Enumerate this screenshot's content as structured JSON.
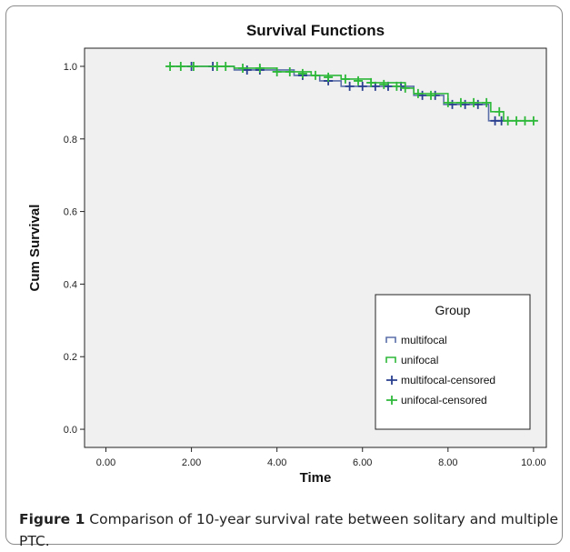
{
  "chart_data": {
    "type": "line",
    "title": "Survival Functions",
    "xlabel": "Time",
    "ylabel": "Cum Survival",
    "xlim": [
      -0.5,
      10.3
    ],
    "ylim": [
      -0.05,
      1.05
    ],
    "x_ticks": [
      "0.00",
      "2.00",
      "4.00",
      "6.00",
      "8.00",
      "10.00"
    ],
    "y_ticks": [
      "0.0",
      "0.2",
      "0.4",
      "0.6",
      "0.8",
      "1.0"
    ],
    "x_tick_values": [
      0,
      2,
      4,
      6,
      8,
      10
    ],
    "y_tick_values": [
      0,
      0.2,
      0.4,
      0.6,
      0.8,
      1.0
    ],
    "grid": false,
    "legend": {
      "title": "Group",
      "placement": "bottom-right",
      "entries": [
        "multifocal",
        "unifocal",
        "multifocal-censored",
        "unifocal-censored"
      ]
    },
    "series": [
      {
        "name": "multifocal",
        "color": "#5a6ea8",
        "steps": [
          [
            1.5,
            1.0
          ],
          [
            3.0,
            0.99
          ],
          [
            4.4,
            0.975
          ],
          [
            5.0,
            0.96
          ],
          [
            5.5,
            0.945
          ],
          [
            7.2,
            0.92
          ],
          [
            7.9,
            0.895
          ],
          [
            8.95,
            0.85
          ],
          [
            9.3,
            0.85
          ]
        ],
        "censored": [
          [
            2.0,
            1.0
          ],
          [
            2.5,
            1.0
          ],
          [
            3.3,
            0.99
          ],
          [
            3.6,
            0.99
          ],
          [
            4.6,
            0.975
          ],
          [
            5.2,
            0.96
          ],
          [
            5.7,
            0.945
          ],
          [
            6.0,
            0.945
          ],
          [
            6.3,
            0.945
          ],
          [
            6.6,
            0.945
          ],
          [
            6.9,
            0.945
          ],
          [
            7.4,
            0.92
          ],
          [
            7.7,
            0.92
          ],
          [
            8.1,
            0.895
          ],
          [
            8.4,
            0.895
          ],
          [
            8.7,
            0.895
          ],
          [
            9.1,
            0.85
          ],
          [
            9.25,
            0.85
          ]
        ]
      },
      {
        "name": "unifocal",
        "color": "#2eb83a",
        "steps": [
          [
            1.5,
            1.0
          ],
          [
            3.0,
            0.995
          ],
          [
            4.0,
            0.985
          ],
          [
            4.8,
            0.975
          ],
          [
            5.5,
            0.965
          ],
          [
            6.2,
            0.955
          ],
          [
            7.0,
            0.94
          ],
          [
            7.2,
            0.925
          ],
          [
            8.0,
            0.9
          ],
          [
            9.0,
            0.875
          ],
          [
            9.3,
            0.85
          ],
          [
            10.0,
            0.85
          ]
        ],
        "censored": [
          [
            1.5,
            1.0
          ],
          [
            1.75,
            1.0
          ],
          [
            2.05,
            1.0
          ],
          [
            2.6,
            1.0
          ],
          [
            2.8,
            1.0
          ],
          [
            3.2,
            0.995
          ],
          [
            3.6,
            0.995
          ],
          [
            4.0,
            0.985
          ],
          [
            4.3,
            0.985
          ],
          [
            4.6,
            0.98
          ],
          [
            4.9,
            0.975
          ],
          [
            5.2,
            0.97
          ],
          [
            5.6,
            0.965
          ],
          [
            5.9,
            0.96
          ],
          [
            6.2,
            0.955
          ],
          [
            6.5,
            0.95
          ],
          [
            6.8,
            0.945
          ],
          [
            7.0,
            0.94
          ],
          [
            7.3,
            0.925
          ],
          [
            7.6,
            0.92
          ],
          [
            8.0,
            0.9
          ],
          [
            8.3,
            0.9
          ],
          [
            8.6,
            0.9
          ],
          [
            8.9,
            0.9
          ],
          [
            9.2,
            0.875
          ],
          [
            9.4,
            0.85
          ],
          [
            9.6,
            0.85
          ],
          [
            9.8,
            0.85
          ],
          [
            10.0,
            0.85
          ]
        ]
      }
    ]
  },
  "caption": {
    "label": "Figure 1",
    "text": " Comparison of 10-year survival rate between solitary and multiple PTC."
  }
}
